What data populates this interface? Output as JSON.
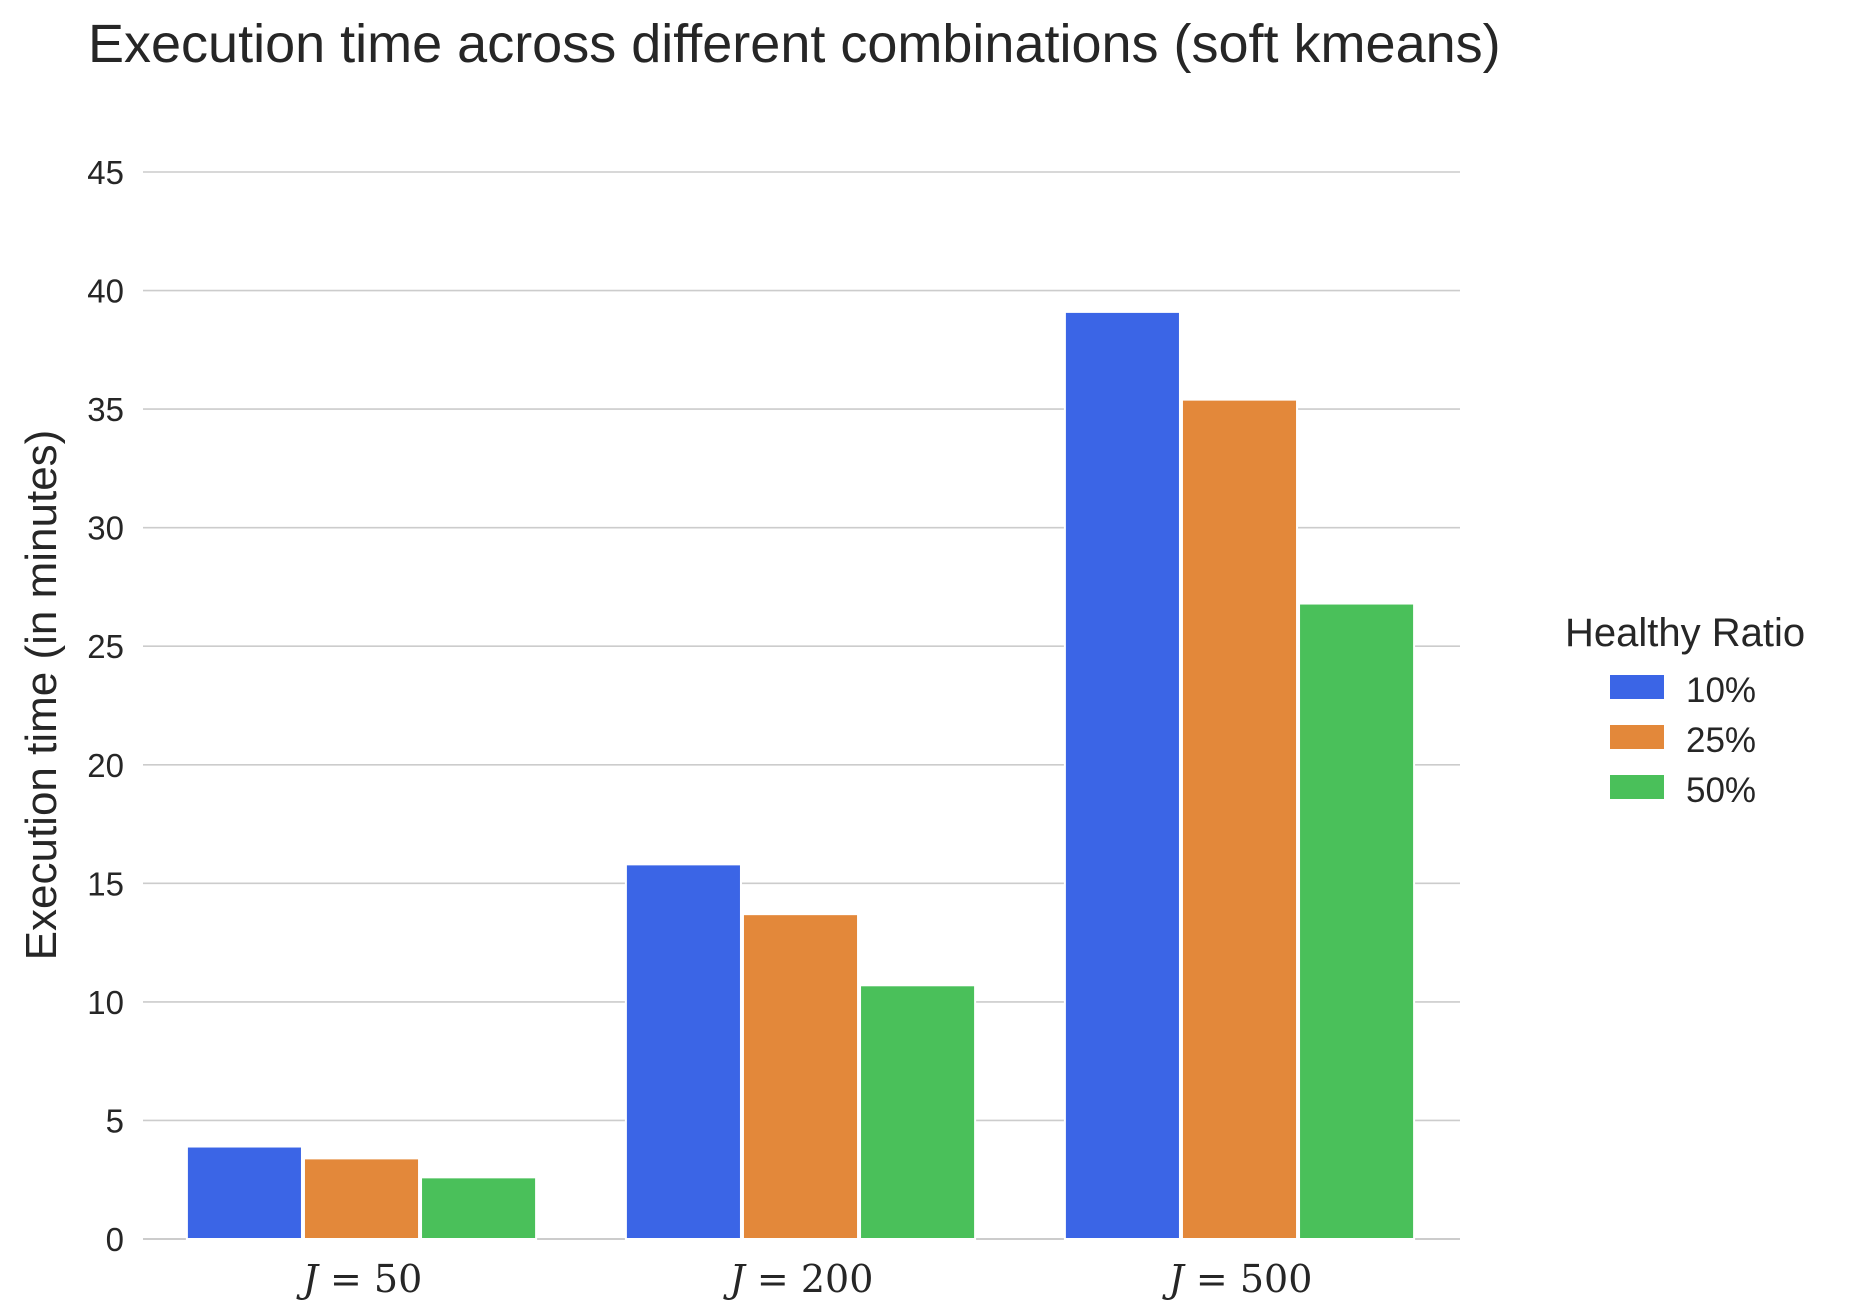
{
  "chart_data": {
    "type": "bar",
    "title": "Execution time across different combinations (soft kmeans)",
    "xlabel": "",
    "ylabel": "Execution time (in minutes)",
    "categories": [
      "J = 50",
      "J = 200",
      "J = 500"
    ],
    "category_parts": [
      {
        "var": "J",
        "rest": " = 50"
      },
      {
        "var": "J",
        "rest": " = 200"
      },
      {
        "var": "J",
        "rest": " = 500"
      }
    ],
    "ylim": [
      0,
      45
    ],
    "yticks": [
      0,
      5,
      10,
      15,
      20,
      25,
      30,
      35,
      40,
      45
    ],
    "grid": true,
    "legend": {
      "title": "Healthy Ratio",
      "placement": "right"
    },
    "series": [
      {
        "name": "10%",
        "color": "#3b65e6",
        "values": [
          3.9,
          15.8,
          39.1
        ]
      },
      {
        "name": "25%",
        "color": "#e3883a",
        "values": [
          3.4,
          13.7,
          35.4
        ]
      },
      {
        "name": "50%",
        "color": "#4ac05a",
        "values": [
          2.6,
          10.7,
          26.8
        ]
      }
    ]
  }
}
